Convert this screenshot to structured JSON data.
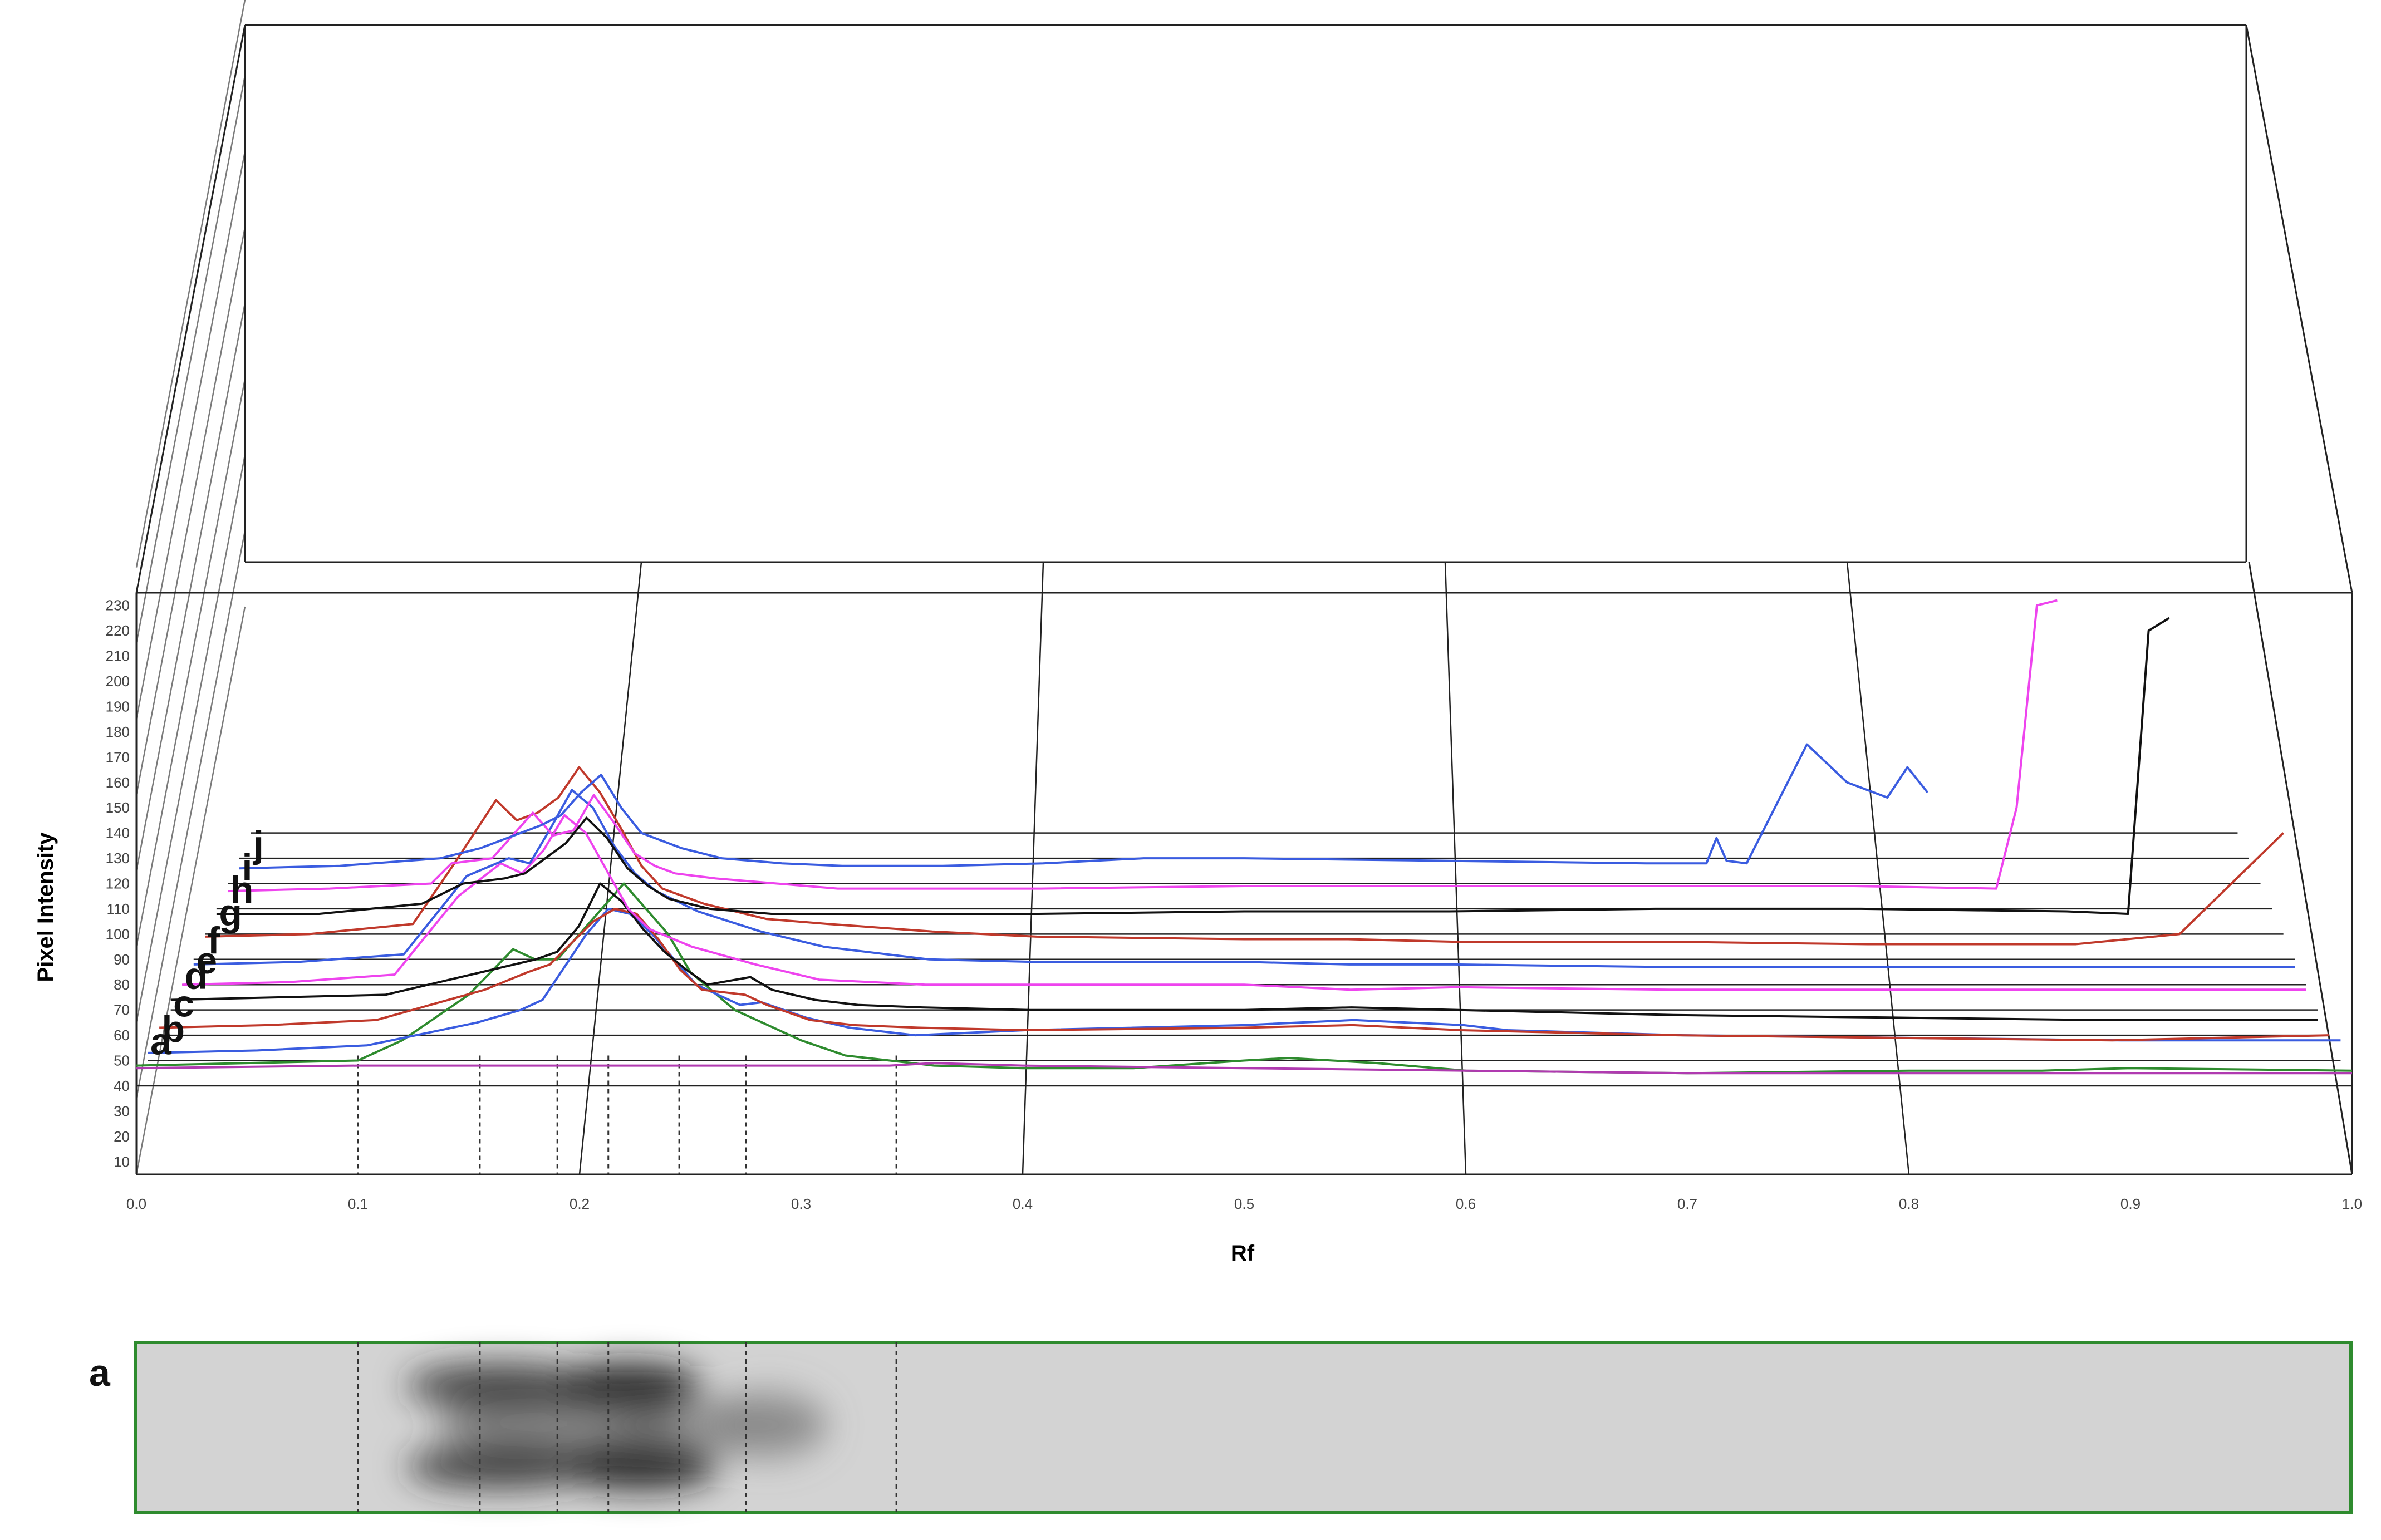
{
  "chart_data": {
    "type": "line",
    "xlabel": "Rf",
    "ylabel": "Pixel Intensity",
    "xlim": [
      0.0,
      1.0
    ],
    "x_ticks": [
      "0.0",
      "0.1",
      "0.2",
      "0.3",
      "0.4",
      "0.5",
      "0.6",
      "0.7",
      "0.8",
      "0.9",
      "1.0"
    ],
    "y_ticks": [
      "10",
      "20",
      "30",
      "40",
      "50",
      "60",
      "70",
      "80",
      "90",
      "100",
      "110",
      "120",
      "130",
      "140",
      "150",
      "160",
      "170",
      "180",
      "190",
      "200",
      "210",
      "220",
      "230"
    ],
    "grid": true,
    "depth_offset_per_series": 10,
    "series": [
      {
        "name": "a",
        "color": "#2e8b2e",
        "x": [
          0.0,
          0.05,
          0.1,
          0.12,
          0.15,
          0.17,
          0.18,
          0.19,
          0.2,
          0.21,
          0.22,
          0.23,
          0.24,
          0.25,
          0.27,
          0.28,
          0.3,
          0.32,
          0.34,
          0.36,
          0.4,
          0.45,
          0.5,
          0.52,
          0.56,
          0.6,
          0.7,
          0.8,
          0.86,
          0.9,
          1.0
        ],
        "y": [
          48,
          49,
          50,
          58,
          76,
          94,
          90,
          90,
          100,
          110,
          120,
          110,
          100,
          85,
          70,
          66,
          58,
          52,
          50,
          48,
          47,
          47,
          50,
          51,
          49,
          46,
          45,
          46,
          46,
          47,
          46
        ]
      },
      {
        "name": "a",
        "color": "#b03ab0",
        "x": [
          0.0,
          0.1,
          0.2,
          0.3,
          0.34,
          0.36,
          0.4,
          0.5,
          0.6,
          0.7,
          0.8,
          0.9,
          1.0
        ],
        "y": [
          47,
          48,
          48,
          48,
          48,
          49,
          48,
          47,
          46,
          45,
          45,
          45,
          45
        ]
      },
      {
        "name": "b",
        "color": "#3a5ce0",
        "x": [
          0.0,
          0.05,
          0.1,
          0.15,
          0.17,
          0.18,
          0.2,
          0.21,
          0.22,
          0.23,
          0.24,
          0.25,
          0.27,
          0.28,
          0.3,
          0.32,
          0.35,
          0.4,
          0.5,
          0.55,
          0.6,
          0.62,
          0.7,
          0.8,
          0.9,
          1.0
        ],
        "y": [
          53,
          54,
          56,
          65,
          70,
          74,
          100,
          110,
          108,
          100,
          90,
          80,
          72,
          73,
          67,
          63,
          60,
          62,
          64,
          66,
          64,
          62,
          60,
          59,
          58,
          58
        ]
      },
      {
        "name": "c",
        "color": "#c0392b",
        "x": [
          0.0,
          0.05,
          0.1,
          0.15,
          0.17,
          0.18,
          0.2,
          0.21,
          0.22,
          0.23,
          0.24,
          0.25,
          0.27,
          0.28,
          0.3,
          0.32,
          0.35,
          0.4,
          0.5,
          0.55,
          0.6,
          0.7,
          0.8,
          0.9,
          1.0
        ],
        "y": [
          63,
          64,
          66,
          78,
          85,
          88,
          105,
          110,
          108,
          98,
          86,
          78,
          76,
          72,
          66,
          64,
          63,
          62,
          63,
          64,
          62,
          60,
          59,
          58,
          60
        ]
      },
      {
        "name": "d",
        "color": "#111111",
        "x": [
          0.0,
          0.05,
          0.1,
          0.15,
          0.17,
          0.18,
          0.19,
          0.2,
          0.21,
          0.22,
          0.23,
          0.24,
          0.25,
          0.27,
          0.28,
          0.3,
          0.32,
          0.35,
          0.4,
          0.5,
          0.55,
          0.6,
          0.7,
          0.8,
          0.9,
          1.0
        ],
        "y": [
          74,
          75,
          76,
          86,
          90,
          93,
          103,
          120,
          113,
          102,
          93,
          86,
          80,
          83,
          78,
          74,
          72,
          71,
          70,
          70,
          71,
          70,
          68,
          67,
          66,
          66
        ]
      },
      {
        "name": "e",
        "color": "#ee44ee",
        "x": [
          0.0,
          0.05,
          0.1,
          0.13,
          0.15,
          0.16,
          0.17,
          0.18,
          0.19,
          0.2,
          0.21,
          0.22,
          0.24,
          0.27,
          0.3,
          0.35,
          0.4,
          0.5,
          0.55,
          0.6,
          0.7,
          0.8,
          0.9,
          1.0
        ],
        "y": [
          80,
          81,
          84,
          115,
          128,
          124,
          133,
          147,
          140,
          125,
          110,
          102,
          95,
          88,
          82,
          80,
          80,
          80,
          78,
          79,
          78,
          78,
          78,
          78
        ]
      },
      {
        "name": "f",
        "color": "#3a5ce0",
        "x": [
          0.0,
          0.05,
          0.1,
          0.13,
          0.15,
          0.16,
          0.17,
          0.18,
          0.19,
          0.2,
          0.21,
          0.22,
          0.24,
          0.27,
          0.3,
          0.35,
          0.4,
          0.5,
          0.55,
          0.6,
          0.7,
          0.8,
          0.9,
          1.0
        ],
        "y": [
          88,
          89,
          92,
          123,
          130,
          128,
          142,
          157,
          150,
          135,
          124,
          117,
          109,
          101,
          95,
          90,
          89,
          89,
          88,
          88,
          87,
          87,
          87,
          87
        ]
      },
      {
        "name": "g",
        "color": "#c0392b",
        "x": [
          0.0,
          0.05,
          0.1,
          0.12,
          0.14,
          0.15,
          0.16,
          0.17,
          0.18,
          0.19,
          0.2,
          0.21,
          0.22,
          0.24,
          0.27,
          0.3,
          0.35,
          0.4,
          0.5,
          0.55,
          0.6,
          0.7,
          0.8,
          0.9,
          0.95,
          1.0
        ],
        "y": [
          99,
          100,
          104,
          128,
          153,
          145,
          148,
          154,
          166,
          156,
          142,
          127,
          118,
          112,
          106,
          104,
          101,
          99,
          98,
          98,
          97,
          97,
          96,
          96,
          100,
          140
        ]
      },
      {
        "name": "h",
        "color": "#111111",
        "x": [
          0.0,
          0.05,
          0.1,
          0.12,
          0.14,
          0.15,
          0.16,
          0.17,
          0.18,
          0.19,
          0.2,
          0.21,
          0.22,
          0.24,
          0.27,
          0.3,
          0.35,
          0.4,
          0.5,
          0.55,
          0.6,
          0.7,
          0.8,
          0.9,
          0.93,
          0.94,
          0.95
        ],
        "y": [
          108,
          108,
          112,
          120,
          122,
          124,
          130,
          136,
          146,
          138,
          126,
          119,
          114,
          110,
          108,
          108,
          108,
          108,
          109,
          109,
          109,
          110,
          110,
          109,
          108,
          220,
          225
        ]
      },
      {
        "name": "i",
        "color": "#ee44ee",
        "x": [
          0.0,
          0.05,
          0.1,
          0.11,
          0.13,
          0.15,
          0.16,
          0.17,
          0.18,
          0.19,
          0.2,
          0.21,
          0.22,
          0.24,
          0.27,
          0.3,
          0.35,
          0.4,
          0.5,
          0.55,
          0.6,
          0.7,
          0.8,
          0.87,
          0.88,
          0.89,
          0.9
        ],
        "y": [
          117,
          118,
          120,
          128,
          130,
          148,
          139,
          141,
          155,
          144,
          132,
          127,
          124,
          122,
          120,
          118,
          118,
          118,
          119,
          119,
          119,
          119,
          119,
          118,
          150,
          230,
          232
        ]
      },
      {
        "name": "j",
        "color": "#3a5ce0",
        "x": [
          0.0,
          0.05,
          0.1,
          0.12,
          0.14,
          0.15,
          0.16,
          0.17,
          0.18,
          0.19,
          0.2,
          0.22,
          0.24,
          0.27,
          0.3,
          0.35,
          0.4,
          0.45,
          0.5,
          0.6,
          0.7,
          0.73,
          0.735,
          0.74,
          0.75,
          0.78,
          0.8,
          0.82,
          0.83,
          0.84
        ],
        "y": [
          126,
          127,
          130,
          134,
          140,
          143,
          147,
          156,
          163,
          150,
          140,
          134,
          130,
          128,
          127,
          127,
          128,
          130,
          130,
          129,
          128,
          128,
          138,
          129,
          128,
          175,
          160,
          154,
          166,
          156
        ]
      }
    ],
    "gel_strip": {
      "label": "a"
    }
  }
}
